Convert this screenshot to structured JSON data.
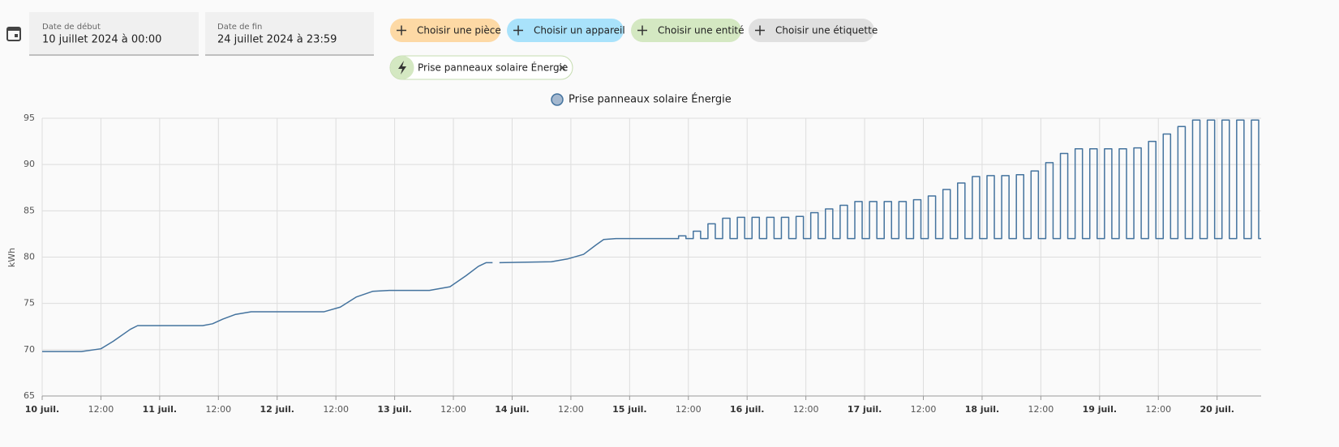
{
  "toolbar": {
    "start": {
      "label": "Date de début",
      "value": "10 juillet 2024 à 00:00"
    },
    "end": {
      "label": "Date de fin",
      "value": "24 juillet 2024 à 23:59"
    },
    "chips": [
      "Choisir une pièce",
      "Choisir un appareil",
      "Choisir une entité",
      "Choisir une étiquette"
    ],
    "selected": "Prise panneaux solaire Énergie"
  },
  "chart_data": {
    "type": "line",
    "y_label": "kWh",
    "grid": true,
    "xlim": [
      0,
      249
    ],
    "ylim": [
      65,
      95
    ],
    "yticks": [
      65,
      70,
      75,
      80,
      85,
      90,
      95
    ],
    "xticks": [
      {
        "value": 0,
        "label": "10 juil."
      },
      {
        "value": 12,
        "label": "12:00"
      },
      {
        "value": 24,
        "label": "11 juil."
      },
      {
        "value": 36,
        "label": "12:00"
      },
      {
        "value": 48,
        "label": "12 juil."
      },
      {
        "value": 60,
        "label": "12:00"
      },
      {
        "value": 72,
        "label": "13 juil."
      },
      {
        "value": 84,
        "label": "12:00"
      },
      {
        "value": 96,
        "label": "14 juil."
      },
      {
        "value": 108,
        "label": "12:00"
      },
      {
        "value": 120,
        "label": "15 juil."
      },
      {
        "value": 132,
        "label": "12:00"
      },
      {
        "value": 144,
        "label": "16 juil."
      },
      {
        "value": 156,
        "label": "12:00"
      },
      {
        "value": 168,
        "label": "17 juil."
      },
      {
        "value": 180,
        "label": "12:00"
      },
      {
        "value": 192,
        "label": "18 juil."
      },
      {
        "value": 204,
        "label": "12:00"
      },
      {
        "value": 216,
        "label": "19 juil."
      },
      {
        "value": 228,
        "label": "12:00"
      },
      {
        "value": 240,
        "label": "20 juil."
      }
    ],
    "x": [
      0,
      8,
      12,
      14.5,
      18,
      19.5,
      24.5,
      32.8,
      34.8,
      36.9,
      39.4,
      42.7,
      57.6,
      60.9,
      64.2,
      67.5,
      70.9,
      79.1,
      83.3,
      86.6,
      89.1,
      90.7,
      92,
      92.7,
      93.4,
      104,
      107.3,
      110.6,
      113.1,
      114.7,
      117.2,
      128.8,
      130,
      130,
      131.5,
      131.5,
      133,
      133,
      134.5,
      134.5,
      136,
      136,
      137.5,
      137.5,
      139,
      139,
      140.5,
      140.5,
      142,
      142,
      143.5,
      143.5,
      145,
      145,
      146.5,
      146.5,
      148,
      148,
      149.5,
      149.5,
      151,
      151,
      152.5,
      152.5,
      154,
      154,
      155.5,
      155.5,
      157,
      157,
      158.5,
      158.5,
      160,
      160,
      161.5,
      161.5,
      163,
      163,
      164.5,
      164.5,
      166,
      166,
      167.5,
      167.5,
      169,
      169,
      170.5,
      170.5,
      172,
      172,
      173.5,
      173.5,
      175,
      175,
      176.5,
      176.5,
      178,
      178,
      179.5,
      179.5,
      181,
      181,
      182.5,
      182.5,
      184,
      184,
      185.5,
      185.5,
      187,
      187,
      188.5,
      188.5,
      190,
      190,
      191.5,
      191.5,
      193,
      193,
      194.5,
      194.5,
      196,
      196,
      197.5,
      197.5,
      199,
      199,
      200.5,
      200.5,
      202,
      202,
      203.5,
      203.5,
      205,
      205,
      206.5,
      206.5,
      208,
      208,
      209.5,
      209.5,
      211,
      211,
      212.5,
      212.5,
      214,
      214,
      215.5,
      215.5,
      217,
      217,
      218.5,
      218.5,
      220,
      220,
      221.5,
      221.5,
      223,
      223,
      224.5,
      224.5,
      226,
      226,
      227.5,
      227.5,
      229,
      229,
      230.5,
      230.5,
      232,
      232,
      233.5,
      233.5,
      235,
      235,
      236.5,
      236.5,
      238,
      238,
      239.5,
      239.5,
      241,
      241,
      242.5,
      242.5,
      244,
      244,
      245.5,
      245.5,
      247,
      247,
      248.5,
      248.5,
      249
    ],
    "series": [
      {
        "name": "Prise panneaux solaire Énergie",
        "color": "#44739e",
        "values": [
          69.8,
          69.8,
          70.1,
          70.9,
          72.2,
          72.6,
          72.6,
          72.6,
          72.8,
          73.3,
          73.8,
          74.1,
          74.1,
          74.6,
          75.7,
          76.3,
          76.4,
          76.4,
          76.8,
          78.0,
          79.0,
          79.4,
          79.4,
          null,
          79.4,
          79.5,
          79.8,
          80.3,
          81.3,
          81.9,
          82.0,
          82.0,
          82,
          82.3,
          82.3,
          82,
          82,
          82.8,
          82.8,
          82,
          82,
          83.6,
          83.6,
          82,
          82,
          84.2,
          84.2,
          82,
          82,
          84.3,
          84.3,
          82,
          82,
          84.3,
          84.3,
          82,
          82,
          84.3,
          84.3,
          82,
          82,
          84.3,
          84.3,
          82,
          82,
          84.4,
          84.4,
          82,
          82,
          84.8,
          84.8,
          82,
          82,
          85.2,
          85.2,
          82,
          82,
          85.6,
          85.6,
          82,
          82,
          86.0,
          86.0,
          82,
          82,
          86.0,
          86.0,
          82,
          82,
          86.0,
          86.0,
          82,
          82,
          86.0,
          86.0,
          82,
          82,
          86.2,
          86.2,
          82,
          82,
          86.6,
          86.6,
          82,
          82,
          87.3,
          87.3,
          82,
          82,
          88.0,
          88.0,
          82,
          82,
          88.7,
          88.7,
          82,
          82,
          88.8,
          88.8,
          82,
          82,
          88.8,
          88.8,
          82,
          82,
          88.9,
          88.9,
          82,
          82,
          89.3,
          89.3,
          82,
          82,
          90.2,
          90.2,
          82,
          82,
          91.2,
          91.2,
          82,
          82,
          91.7,
          91.7,
          82,
          82,
          91.7,
          91.7,
          82,
          82,
          91.7,
          91.7,
          82,
          82,
          91.7,
          91.7,
          82,
          82,
          91.8,
          91.8,
          82,
          82,
          92.5,
          92.5,
          82,
          82,
          93.3,
          93.3,
          82,
          82,
          94.1,
          94.1,
          82,
          82,
          94.8,
          94.8,
          82,
          82,
          94.8,
          94.8,
          82,
          82,
          94.8,
          94.8,
          82,
          82,
          94.8,
          94.8,
          82,
          82,
          94.8,
          94.8,
          82,
          82
        ]
      }
    ]
  }
}
